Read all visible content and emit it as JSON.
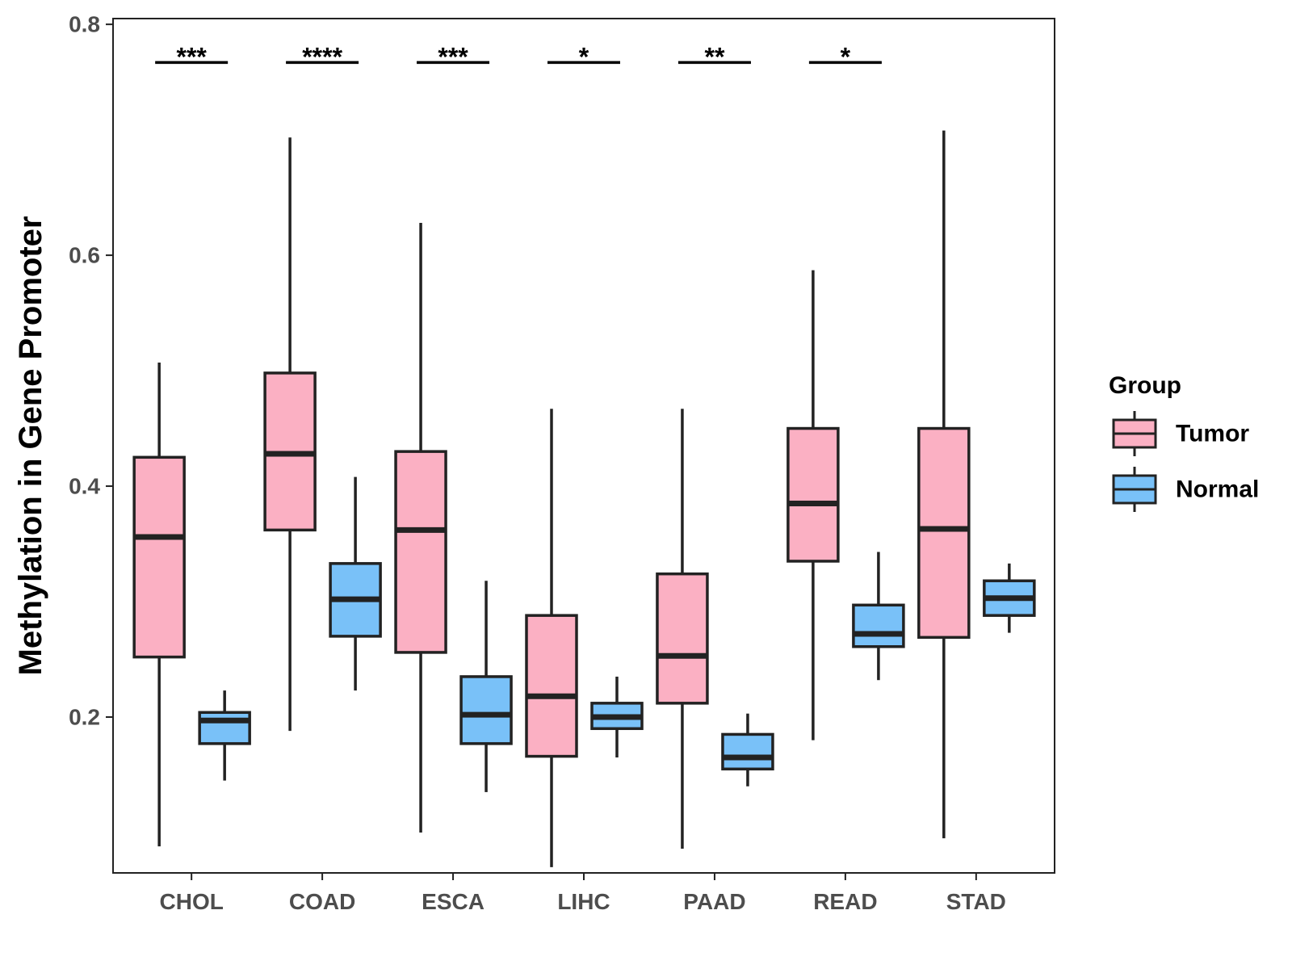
{
  "chart_data": {
    "type": "boxplot",
    "title": "",
    "xlabel": "",
    "ylabel": "Methylation in Gene Promoter",
    "ylim": [
      0.065,
      0.805
    ],
    "yticks": [
      0.2,
      0.4,
      0.6,
      0.8
    ],
    "ytick_labels": [
      "0.2",
      "0.4",
      "0.6",
      "0.8"
    ],
    "categories": [
      "CHOL",
      "COAD",
      "ESCA",
      "LIHC",
      "PAAD",
      "READ",
      "STAD"
    ],
    "legend": {
      "title": "Group",
      "position": "right",
      "entries": [
        {
          "name": "Tumor",
          "color": "#FBB0C3"
        },
        {
          "name": "Normal",
          "color": "#79C1F8"
        }
      ]
    },
    "series": [
      {
        "name": "Tumor",
        "color": "#FBB0C3",
        "boxes": [
          {
            "whisker_low": 0.088,
            "q1": 0.252,
            "median": 0.356,
            "q3": 0.425,
            "whisker_high": 0.507
          },
          {
            "whisker_low": 0.188,
            "q1": 0.362,
            "median": 0.428,
            "q3": 0.498,
            "whisker_high": 0.702
          },
          {
            "whisker_low": 0.1,
            "q1": 0.256,
            "median": 0.362,
            "q3": 0.43,
            "whisker_high": 0.628
          },
          {
            "whisker_low": 0.07,
            "q1": 0.166,
            "median": 0.218,
            "q3": 0.288,
            "whisker_high": 0.467
          },
          {
            "whisker_low": 0.086,
            "q1": 0.212,
            "median": 0.253,
            "q3": 0.324,
            "whisker_high": 0.467
          },
          {
            "whisker_low": 0.18,
            "q1": 0.335,
            "median": 0.385,
            "q3": 0.45,
            "whisker_high": 0.587
          },
          {
            "whisker_low": 0.095,
            "q1": 0.269,
            "median": 0.363,
            "q3": 0.45,
            "whisker_high": 0.708
          }
        ]
      },
      {
        "name": "Normal",
        "color": "#79C1F8",
        "boxes": [
          {
            "whisker_low": 0.145,
            "q1": 0.177,
            "median": 0.197,
            "q3": 0.204,
            "whisker_high": 0.223
          },
          {
            "whisker_low": 0.223,
            "q1": 0.27,
            "median": 0.302,
            "q3": 0.333,
            "whisker_high": 0.408
          },
          {
            "whisker_low": 0.135,
            "q1": 0.177,
            "median": 0.202,
            "q3": 0.235,
            "whisker_high": 0.318
          },
          {
            "whisker_low": 0.165,
            "q1": 0.19,
            "median": 0.2,
            "q3": 0.212,
            "whisker_high": 0.235
          },
          {
            "whisker_low": 0.14,
            "q1": 0.155,
            "median": 0.165,
            "q3": 0.185,
            "whisker_high": 0.203
          },
          {
            "whisker_low": 0.232,
            "q1": 0.261,
            "median": 0.272,
            "q3": 0.297,
            "whisker_high": 0.343
          },
          {
            "whisker_low": 0.273,
            "q1": 0.288,
            "median": 0.303,
            "q3": 0.318,
            "whisker_high": 0.333
          }
        ]
      }
    ],
    "significance": [
      {
        "category": "CHOL",
        "label": "***"
      },
      {
        "category": "COAD",
        "label": "****"
      },
      {
        "category": "ESCA",
        "label": "***"
      },
      {
        "category": "LIHC",
        "label": "*"
      },
      {
        "category": "PAAD",
        "label": "**"
      },
      {
        "category": "READ",
        "label": "*"
      }
    ],
    "significance_line_y": 0.767,
    "grid": false,
    "panel_border": true,
    "colors": {
      "outline": "#222222",
      "axis": "#222222",
      "tick_text": "#4d4d4d"
    }
  }
}
